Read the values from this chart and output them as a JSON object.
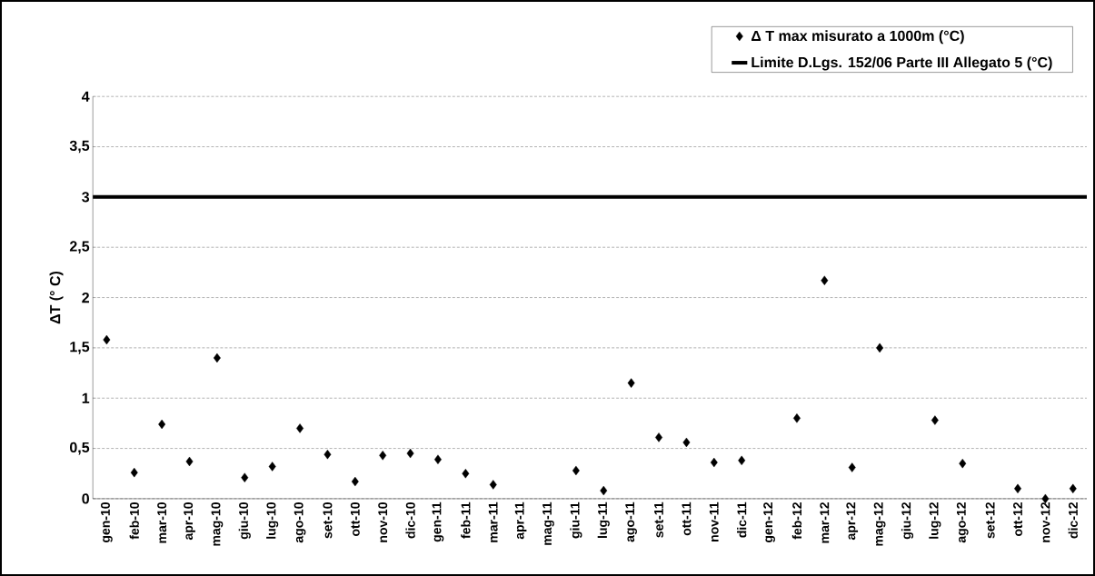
{
  "chart_data": {
    "type": "scatter",
    "ylabel": "ΔT (° C)",
    "categories": [
      "gen-10",
      "feb-10",
      "mar-10",
      "apr-10",
      "mag-10",
      "giu-10",
      "lug-10",
      "ago-10",
      "set-10",
      "ott-10",
      "nov-10",
      "dic-10",
      "gen-11",
      "feb-11",
      "mar-11",
      "apr-11",
      "mag-11",
      "giu-11",
      "lug-11",
      "ago-11",
      "set-11",
      "ott-11",
      "nov-11",
      "dic-11",
      "gen-12",
      "feb-12",
      "mar-12",
      "apr-12",
      "mag-12",
      "giu-12",
      "lug-12",
      "ago-12",
      "set-12",
      "ott-12",
      "nov-12",
      "dic-12"
    ],
    "series": [
      {
        "name": "Δ T max misurato a 1000m (°C)",
        "color": "#000000",
        "values": [
          1.58,
          0.26,
          0.74,
          0.37,
          1.4,
          0.21,
          0.32,
          0.7,
          0.44,
          0.17,
          0.43,
          0.45,
          0.39,
          0.25,
          0.14,
          null,
          null,
          0.28,
          0.08,
          1.15,
          0.61,
          0.56,
          0.36,
          0.38,
          null,
          0.8,
          2.17,
          0.31,
          1.5,
          null,
          0.78,
          0.35,
          null,
          0.1,
          0,
          0.1
        ]
      }
    ],
    "ref_lines": [
      {
        "axis": "y",
        "value": 3,
        "label": "Limite D.Lgs. 152/06 Parte III Allegato 5 (°C)",
        "color": "#000000"
      }
    ],
    "ylim": [
      0,
      4
    ],
    "yticks": [
      0,
      {
        "value": 0.5,
        "label": "0,5"
      },
      1,
      {
        "value": 1.5,
        "label": "1,5"
      },
      2,
      {
        "value": 2.5,
        "label": "2,5"
      },
      3,
      {
        "value": 3.5,
        "label": "3,5"
      },
      4
    ],
    "grid": "y",
    "marker": "diamond",
    "legend": "top right"
  }
}
